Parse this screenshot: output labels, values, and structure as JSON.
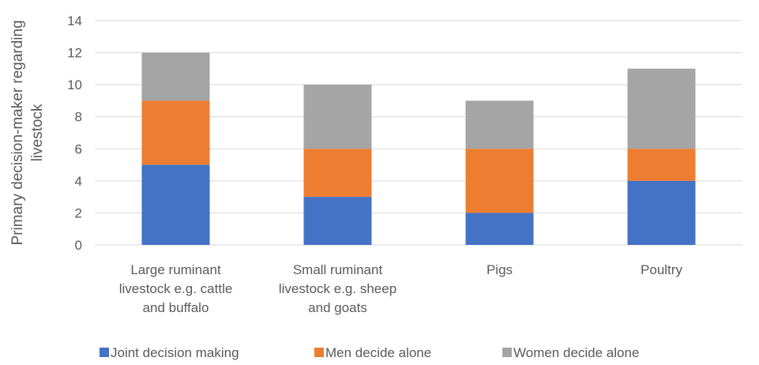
{
  "chart_data": {
    "type": "bar",
    "stacked": true,
    "categories": [
      [
        "Large ruminant",
        "livestock e.g. cattle",
        "and buffalo"
      ],
      [
        "Small ruminant",
        "livestock e.g. sheep",
        "and goats"
      ],
      [
        "Pigs"
      ],
      [
        "Poultry"
      ]
    ],
    "series": [
      {
        "name": "Joint decision making",
        "color": "#4472c4",
        "values": [
          5,
          3,
          2,
          4
        ]
      },
      {
        "name": "Men decide alone",
        "color": "#ed7d31",
        "values": [
          4,
          3,
          4,
          2
        ]
      },
      {
        "name": "Women decide alone",
        "color": "#a5a5a5",
        "values": [
          3,
          4,
          3,
          5
        ]
      }
    ],
    "ylabel": [
      "Primary decision-maker regarding",
      "livestock"
    ],
    "ylim": [
      0,
      14
    ],
    "yticks": [
      0,
      2,
      4,
      6,
      8,
      10,
      12,
      14
    ],
    "grid": true,
    "legend": "bottom"
  }
}
